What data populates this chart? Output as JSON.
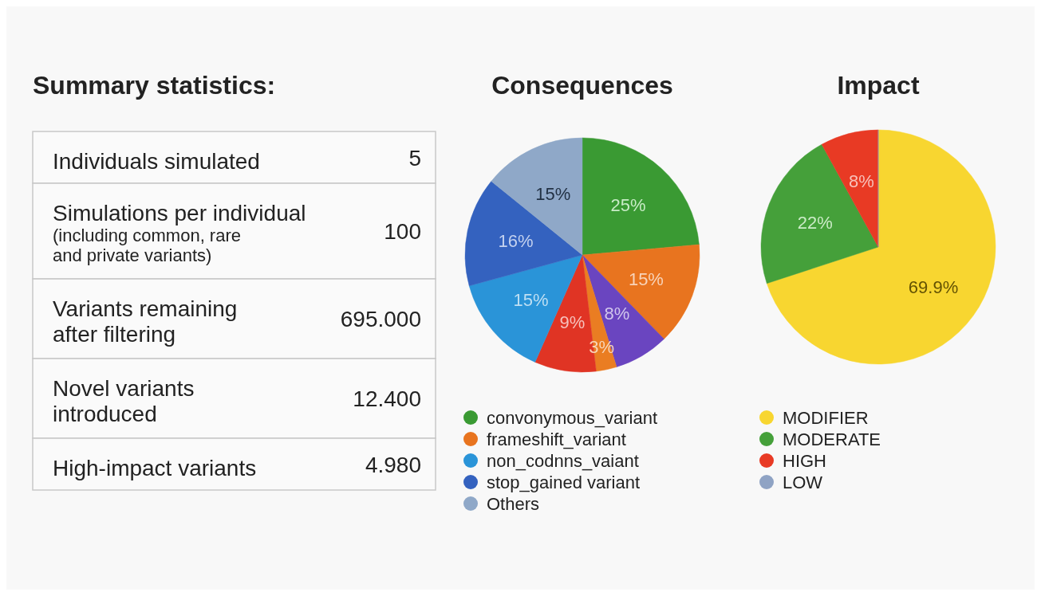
{
  "chart_data": [
    {
      "type": "other",
      "title": "Summary statistics:",
      "categories": [
        "Individuals simulated",
        "Simulations per individual\n(including common, rare\nand private variants)",
        "Variants remaining\nafter filtering",
        "Novel variants\nintroduced",
        "High-impact variants"
      ],
      "value_labels": [
        "5",
        "100",
        "695.000",
        "12.400",
        "4.980"
      ]
    },
    {
      "type": "pie",
      "title": "Consequences",
      "categories": [
        "convonymous_variant",
        "frameshift_variant",
        null,
        null,
        null,
        "non_codnns_vaiant",
        "stop_gained variant",
        "Others"
      ],
      "values": [
        25,
        15,
        8,
        3,
        9,
        15,
        16,
        15
      ],
      "colors": [
        "#3a9a33",
        "#e8741f",
        "#6a45c0",
        "#ea7d22",
        "#e03424",
        "#2a94d8",
        "#3462bf",
        "#8fa8c8"
      ],
      "value_labels": [
        "25%",
        "15%",
        "8%",
        "3%",
        "9%",
        "15%",
        "16%",
        "15%"
      ],
      "legend": "bottom"
    },
    {
      "type": "pie",
      "title": "Impact",
      "categories": [
        "MODIFIER",
        "MODERATE",
        "HIGH",
        "LOW"
      ],
      "values": [
        69.9,
        22,
        8,
        0
      ],
      "colors": [
        "#f8d630",
        "#45a03a",
        "#e83a24",
        "#8fa3c4"
      ],
      "value_labels": [
        "69.9%",
        "22%",
        "8%",
        null
      ],
      "legend": "bottom"
    }
  ]
}
